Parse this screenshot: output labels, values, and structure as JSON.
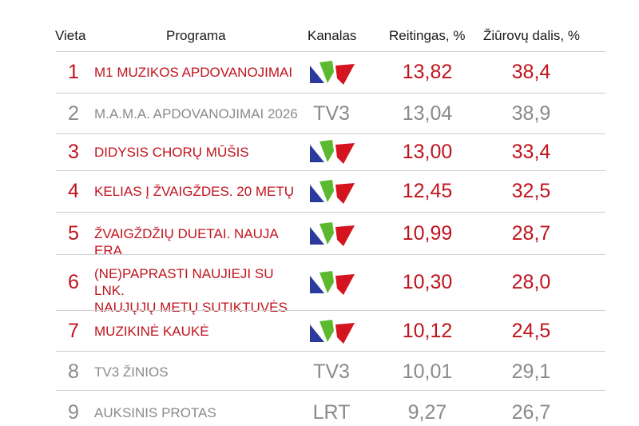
{
  "headers": {
    "vieta": "Vieta",
    "programa": "Programa",
    "kanalas": "Kanalas",
    "reitingas": "Reitingas, %",
    "dalis": "Žiūrovų dalis, %"
  },
  "colors": {
    "highlight": "#c0141e",
    "muted": "#8a8a8a",
    "logo_blue": "#2b3a9e",
    "logo_green": "#5cb82e",
    "logo_red": "#d4141e"
  },
  "rows": [
    {
      "place": "1",
      "program": [
        "M1 MUZIKOS APDOVANOJIMAI"
      ],
      "channel": "",
      "channel_icon": "lnk-logo-icon",
      "rating": "13,82",
      "share": "38,4"
    },
    {
      "place": "2",
      "program": [
        "M.A.M.A. APDOVANOJIMAI 2026"
      ],
      "channel": "TV3",
      "channel_icon": "",
      "rating": "13,04",
      "share": "38,9"
    },
    {
      "place": "3",
      "program": [
        "DIDYSIS CHORŲ MŪŠIS"
      ],
      "channel": "",
      "channel_icon": "lnk-logo-icon",
      "rating": "13,00",
      "share": "33,4"
    },
    {
      "place": "4",
      "program": [
        "KELIAS Į ŽVAIGŽDES. 20 METŲ"
      ],
      "channel": "",
      "channel_icon": "lnk-logo-icon",
      "rating": "12,45",
      "share": "32,5"
    },
    {
      "place": "5",
      "program": [
        "ŽVAIGŽDŽIŲ DUETAI. NAUJA ERA"
      ],
      "channel": "",
      "channel_icon": "lnk-logo-icon",
      "rating": "10,99",
      "share": "28,7"
    },
    {
      "place": "6",
      "program": [
        "(NE)PAPRASTI NAUJIEJI SU LNK.",
        "NAUJŲJŲ METŲ SUTIKTUVĖS"
      ],
      "channel": "",
      "channel_icon": "lnk-logo-icon",
      "rating": "10,30",
      "share": "28,0"
    },
    {
      "place": "7",
      "program": [
        "MUZIKINĖ KAUKĖ"
      ],
      "channel": "",
      "channel_icon": "lnk-logo-icon",
      "rating": "10,12",
      "share": "24,5"
    },
    {
      "place": "8",
      "program": [
        "TV3 ŽINIOS"
      ],
      "channel": "TV3",
      "channel_icon": "",
      "rating": "10,01",
      "share": "29,1"
    },
    {
      "place": "9",
      "program": [
        "AUKSINIS PROTAS"
      ],
      "channel": "LRT",
      "channel_icon": "",
      "rating": "9,27",
      "share": "26,7"
    }
  ]
}
